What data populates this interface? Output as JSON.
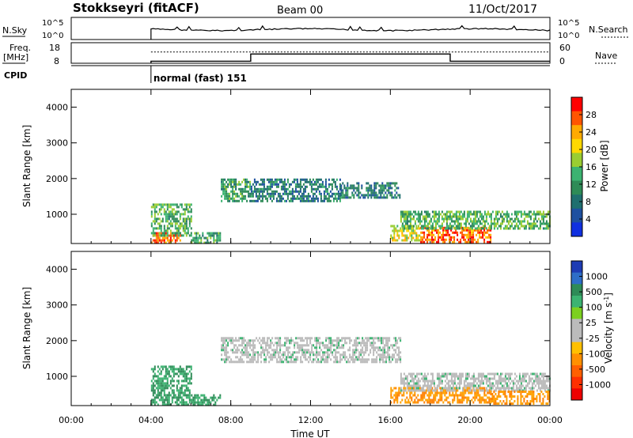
{
  "header": {
    "station": "Stokkseyri (fitACF)",
    "beam": "Beam 00",
    "date": "11/Oct/2017"
  },
  "top_panels": {
    "nsky_label": "N.Sky",
    "nsky_ticks": [
      "10^5",
      "10^0"
    ],
    "nsearch_label": "N.Search",
    "nsearch_ticks": [
      "10^5",
      "10^0"
    ],
    "freq_label": "Freq.",
    "freq_unit": "[MHz]",
    "freq_ticks": [
      "18",
      "8"
    ],
    "nave_label": "Nave",
    "nave_ticks": [
      "60",
      "0"
    ],
    "cpid_label": "CPID",
    "cpid_text": "normal (fast) 151",
    "cpid_start_hour": 4,
    "freq_steps": [
      [
        4,
        9
      ],
      [
        9,
        12.5
      ],
      [
        19,
        9
      ]
    ],
    "nave_level": 0.55
  },
  "panels": {
    "power": {
      "ylabel": "Slant Range [km]",
      "cblabel": "Power [dB]",
      "cbticks": [
        "28",
        "24",
        "20",
        "16",
        "12",
        "8",
        "4"
      ],
      "cbcolors": [
        "#ff0000",
        "#ff5500",
        "#ffaa00",
        "#ffd800",
        "#9acd32",
        "#3cb371",
        "#2e8b57",
        "#1f6f6f",
        "#1e50a0",
        "#1030e0"
      ]
    },
    "velocity": {
      "ylabel": "Slant Range [km]",
      "cblabel": "Velocity [m s",
      "cblabel_sup": "-1",
      "cblabel_end": "]",
      "cbticks": [
        "1000",
        "500",
        "100",
        "25",
        "-25",
        "-100",
        "-500",
        "-1000"
      ],
      "cbcolors": [
        "#1e3cb4",
        "#2e6ec8",
        "#2e8b57",
        "#3cb371",
        "#7cd020",
        "#bbbbbb",
        "#bbbbbb",
        "#ffc000",
        "#ff9000",
        "#ff6000",
        "#ff3000",
        "#ee0000"
      ]
    }
  },
  "xaxis": {
    "label": "Time UT",
    "ticks": [
      "00:00",
      "04:00",
      "08:00",
      "12:00",
      "16:00",
      "20:00",
      "00:00"
    ]
  },
  "chart_data": {
    "type": "heatmap",
    "x_hours": [
      0,
      24
    ],
    "yticks": [
      "1000",
      "2000",
      "3000",
      "4000"
    ],
    "y_values_km": [
      1000,
      2000,
      3000,
      4000
    ],
    "ylim": [
      180,
      4500
    ],
    "power_regions": [
      {
        "t0": 4.0,
        "t1": 5.5,
        "r0": 200,
        "r1": 500,
        "dB": 28
      },
      {
        "t0": 4.0,
        "t1": 6.0,
        "r0": 400,
        "r1": 1300,
        "dB": 14
      },
      {
        "t0": 6.0,
        "t1": 7.5,
        "r0": 200,
        "r1": 500,
        "dB": 12
      },
      {
        "t0": 7.5,
        "t1": 9.0,
        "r0": 1400,
        "r1": 2000,
        "dB": 12
      },
      {
        "t0": 9.0,
        "t1": 13.5,
        "r0": 1400,
        "r1": 2000,
        "dB": 8
      },
      {
        "t0": 13.5,
        "t1": 16.5,
        "r0": 1500,
        "r1": 1900,
        "dB": 8
      },
      {
        "t0": 16.0,
        "t1": 17.5,
        "r0": 250,
        "r1": 700,
        "dB": 20
      },
      {
        "t0": 17.5,
        "t1": 21.0,
        "r0": 250,
        "r1": 650,
        "dB": 28
      },
      {
        "t0": 16.5,
        "t1": 24.0,
        "r0": 600,
        "r1": 1100,
        "dB": 14
      }
    ],
    "velocity_regions": [
      {
        "t0": 4.0,
        "t1": 6.0,
        "r0": 200,
        "r1": 1300,
        "v": 100
      },
      {
        "t0": 6.0,
        "t1": 7.5,
        "r0": 200,
        "r1": 500,
        "v": 100
      },
      {
        "t0": 7.5,
        "t1": 16.5,
        "r0": 1400,
        "r1": 2100,
        "v": 0
      },
      {
        "t0": 16.0,
        "t1": 21.0,
        "r0": 250,
        "r1": 700,
        "v": -100
      },
      {
        "t0": 16.5,
        "t1": 24.0,
        "r0": 600,
        "r1": 1100,
        "v": 0
      },
      {
        "t0": 21.0,
        "t1": 24.0,
        "r0": 250,
        "r1": 600,
        "v": -100
      }
    ]
  }
}
